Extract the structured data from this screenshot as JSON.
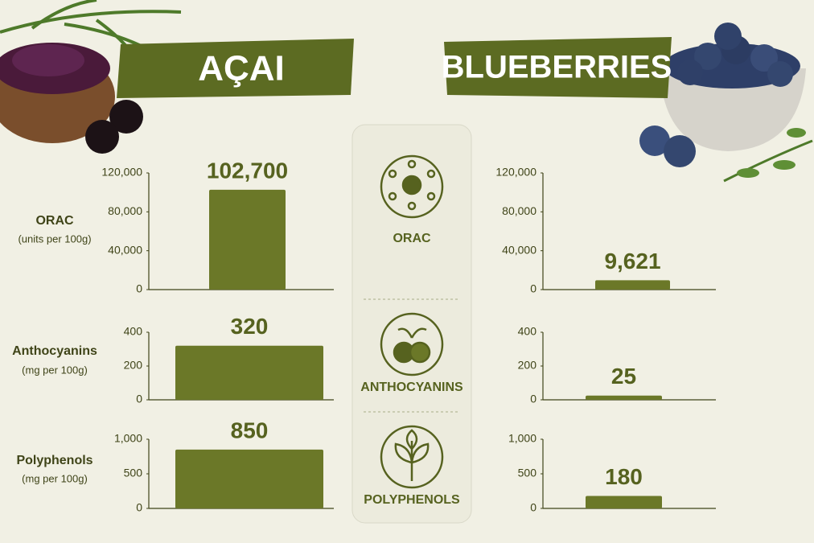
{
  "header": {
    "left_title": "AÇAI",
    "right_title": "BLUEBERRIES"
  },
  "row_labels": [
    {
      "name": "ORAC",
      "unit": "(units per 100g)"
    },
    {
      "name": "Anthocyanins",
      "unit": "(mg per 100g)"
    },
    {
      "name": "Polyphenols",
      "unit": "(mg per 100g)"
    }
  ],
  "center_labels": [
    "ORAC",
    "ANTHOCYANINS",
    "POLYPHENOLS"
  ],
  "chart_data": [
    {
      "type": "bar",
      "values": [
        102700
      ],
      "value_labels": [
        "102,700"
      ],
      "color": "#6b7828",
      "ylim": [
        0,
        120000
      ],
      "yticks": [
        0,
        {
          "value": 40000,
          "label": "40,000"
        },
        {
          "value": 80000,
          "label": "80,000"
        },
        {
          "value": 120000,
          "label": "120,000"
        }
      ]
    },
    {
      "type": "bar",
      "values": [
        320
      ],
      "color": "#6b7828",
      "ylim": [
        0,
        400
      ],
      "yticks": [
        0,
        200,
        400
      ]
    },
    {
      "type": "bar",
      "values": [
        850
      ],
      "color": "#6b7828",
      "ylim": [
        0,
        1000
      ],
      "yticks": [
        0,
        500,
        {
          "value": 1000,
          "label": "1,000"
        }
      ]
    },
    {
      "type": "bar",
      "values": [
        9621
      ],
      "value_labels": [
        "9,621"
      ],
      "color": "#6b7828",
      "ylim": [
        0,
        120000
      ],
      "yticks": [
        0,
        {
          "value": 40000,
          "label": "40,000"
        },
        {
          "value": 80000,
          "label": "80,000"
        },
        {
          "value": 120000,
          "label": "120,000"
        }
      ]
    },
    {
      "type": "bar",
      "values": [
        25
      ],
      "color": "#6b7828",
      "ylim": [
        0,
        400
      ],
      "yticks": [
        0,
        200,
        400
      ]
    },
    {
      "type": "bar",
      "values": [
        180
      ],
      "color": "#6b7828",
      "ylim": [
        0,
        1000
      ],
      "yticks": [
        0,
        500,
        {
          "value": 1000,
          "label": "1,000"
        }
      ]
    }
  ]
}
